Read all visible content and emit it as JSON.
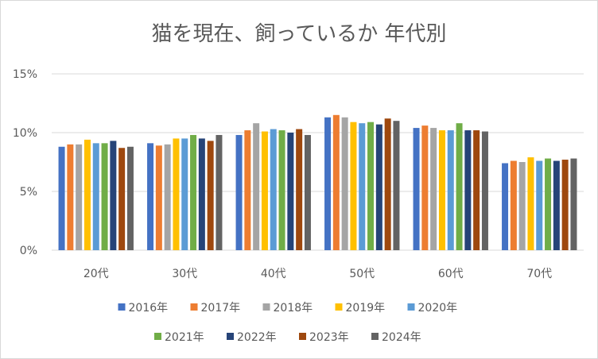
{
  "chart_data": {
    "type": "bar",
    "title": "猫を現在、飼っているか 年代別",
    "xlabel": "",
    "ylabel": "",
    "categories": [
      "20代",
      "30代",
      "40代",
      "50代",
      "60代",
      "70代"
    ],
    "yticks": [
      "0%",
      "5%",
      "10%",
      "15%"
    ],
    "ylim": [
      0,
      15
    ],
    "grid": true,
    "legend": "bottom",
    "series": [
      {
        "name": "2016年",
        "color": "#4472c4",
        "values": [
          8.8,
          9.1,
          9.8,
          11.3,
          10.4,
          7.4
        ]
      },
      {
        "name": "2017年",
        "color": "#ed7d31",
        "values": [
          9.0,
          8.9,
          10.2,
          11.5,
          10.6,
          7.6
        ]
      },
      {
        "name": "2018年",
        "color": "#a5a5a5",
        "values": [
          9.0,
          9.0,
          10.8,
          11.3,
          10.4,
          7.5
        ]
      },
      {
        "name": "2019年",
        "color": "#ffc000",
        "values": [
          9.4,
          9.5,
          10.1,
          10.9,
          10.2,
          7.9
        ]
      },
      {
        "name": "2020年",
        "color": "#5b9bd5",
        "values": [
          9.1,
          9.5,
          10.3,
          10.8,
          10.2,
          7.6
        ]
      },
      {
        "name": "2021年",
        "color": "#70ad47",
        "values": [
          9.1,
          9.8,
          10.2,
          10.9,
          10.8,
          7.8
        ]
      },
      {
        "name": "2022年",
        "color": "#264478",
        "values": [
          9.3,
          9.5,
          10.0,
          10.7,
          10.2,
          7.6
        ]
      },
      {
        "name": "2023年",
        "color": "#9e480e",
        "values": [
          8.7,
          9.3,
          10.3,
          11.2,
          10.2,
          7.7
        ]
      },
      {
        "name": "2024年",
        "color": "#636363",
        "values": [
          8.8,
          9.8,
          9.8,
          11.0,
          10.1,
          7.8
        ]
      }
    ]
  }
}
